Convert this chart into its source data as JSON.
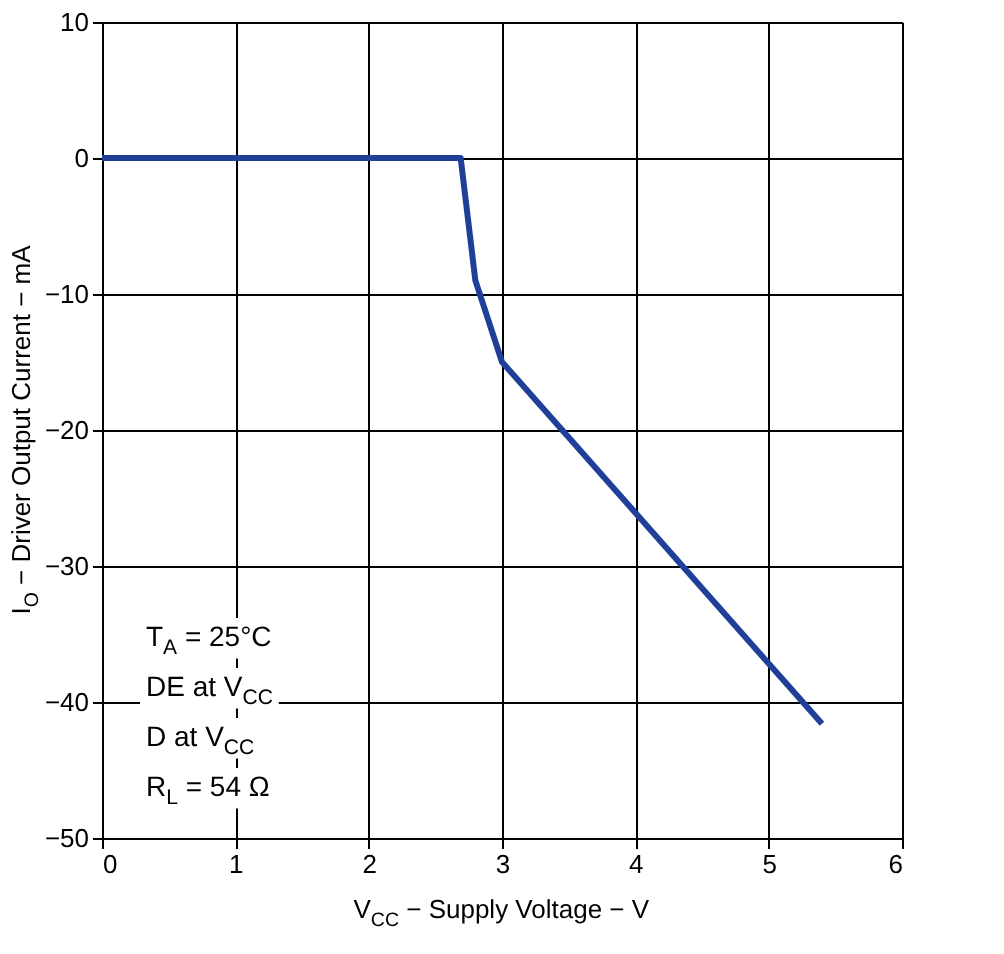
{
  "chart_data": {
    "type": "line",
    "xlabel": "V$_{CC}$ − Supply Voltage − V",
    "ylabel": "I$_{O}$ − Driver Output Current − mA",
    "x": [
      0,
      2.69,
      2.8,
      3.0,
      5.4
    ],
    "series": [
      {
        "color": "#1f3f99",
        "values": [
          0,
          0,
          -9,
          -15,
          -41.6
        ]
      }
    ],
    "xlim": [
      0,
      6
    ],
    "xticks": [
      0,
      1,
      2,
      3,
      4,
      5,
      6
    ],
    "ylim": [
      -50,
      10
    ],
    "yticks": [
      -50,
      -40,
      -30,
      -20,
      -10,
      0,
      10
    ],
    "grid": true,
    "marker": "none",
    "line_style": "solid",
    "annotations": [
      "T$_{A}$ = 25°C",
      "DE at V$_{CC}$",
      "D at V$_{CC}$",
      "R$_{L}$ = 54 Ω"
    ]
  }
}
